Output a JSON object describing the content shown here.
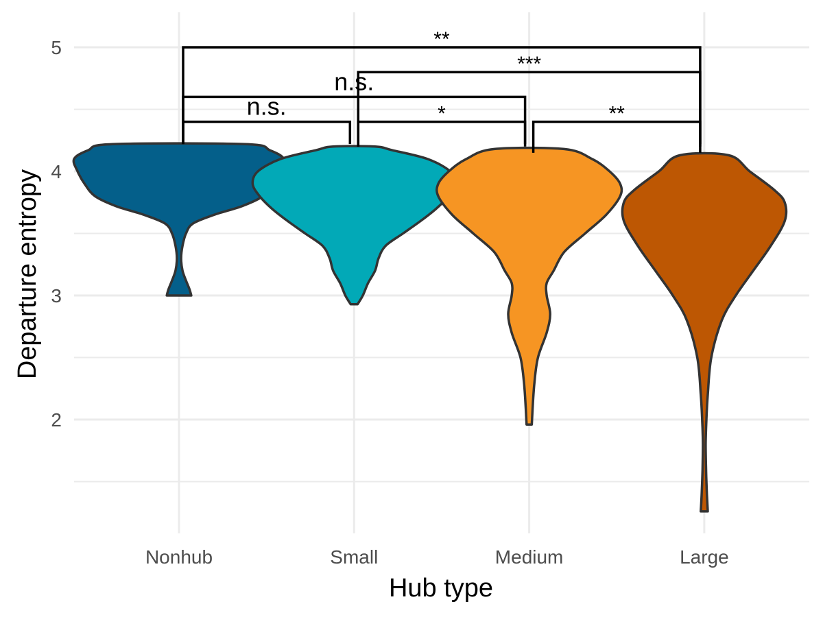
{
  "chart_data": {
    "type": "violin",
    "xlabel": "Hub type",
    "ylabel": "Departure entropy",
    "categories": [
      "Nonhub",
      "Small",
      "Medium",
      "Large"
    ],
    "colors": [
      "#045f8a",
      "#02a9b7",
      "#f69523",
      "#bd5703"
    ],
    "ylim": [
      1.1,
      5.3
    ],
    "yticks": [
      2,
      3,
      4,
      5
    ],
    "grid": true,
    "legend": "none",
    "violins": [
      {
        "category": "Nonhub",
        "min": 3.0,
        "max": 4.22,
        "profile": [
          {
            "y": 3.0,
            "w": 0.07
          },
          {
            "y": 3.05,
            "w": 0.06
          },
          {
            "y": 3.12,
            "w": 0.04
          },
          {
            "y": 3.2,
            "w": 0.02
          },
          {
            "y": 3.3,
            "w": 0.012
          },
          {
            "y": 3.4,
            "w": 0.02
          },
          {
            "y": 3.5,
            "w": 0.04
          },
          {
            "y": 3.58,
            "w": 0.08
          },
          {
            "y": 3.65,
            "w": 0.2
          },
          {
            "y": 3.72,
            "w": 0.36
          },
          {
            "y": 3.8,
            "w": 0.48
          },
          {
            "y": 3.9,
            "w": 0.54
          },
          {
            "y": 4.0,
            "w": 0.58
          },
          {
            "y": 4.1,
            "w": 0.6
          },
          {
            "y": 4.17,
            "w": 0.52
          },
          {
            "y": 4.22,
            "w": 0.38
          }
        ]
      },
      {
        "category": "Small",
        "min": 2.93,
        "max": 4.2,
        "profile": [
          {
            "y": 2.93,
            "w": 0.02
          },
          {
            "y": 3.0,
            "w": 0.05
          },
          {
            "y": 3.1,
            "w": 0.08
          },
          {
            "y": 3.2,
            "w": 0.12
          },
          {
            "y": 3.3,
            "w": 0.14
          },
          {
            "y": 3.4,
            "w": 0.18
          },
          {
            "y": 3.5,
            "w": 0.28
          },
          {
            "y": 3.6,
            "w": 0.38
          },
          {
            "y": 3.7,
            "w": 0.47
          },
          {
            "y": 3.8,
            "w": 0.54
          },
          {
            "y": 3.9,
            "w": 0.58
          },
          {
            "y": 4.0,
            "w": 0.55
          },
          {
            "y": 4.1,
            "w": 0.42
          },
          {
            "y": 4.17,
            "w": 0.22
          },
          {
            "y": 4.2,
            "w": 0.12
          }
        ]
      },
      {
        "category": "Medium",
        "min": 1.96,
        "max": 4.18,
        "profile": [
          {
            "y": 1.96,
            "w": 0.015
          },
          {
            "y": 2.1,
            "w": 0.02
          },
          {
            "y": 2.3,
            "w": 0.03
          },
          {
            "y": 2.5,
            "w": 0.05
          },
          {
            "y": 2.7,
            "w": 0.1
          },
          {
            "y": 2.85,
            "w": 0.12
          },
          {
            "y": 3.0,
            "w": 0.1
          },
          {
            "y": 3.1,
            "w": 0.1
          },
          {
            "y": 3.2,
            "w": 0.14
          },
          {
            "y": 3.35,
            "w": 0.2
          },
          {
            "y": 3.5,
            "w": 0.32
          },
          {
            "y": 3.65,
            "w": 0.44
          },
          {
            "y": 3.8,
            "w": 0.52
          },
          {
            "y": 3.9,
            "w": 0.52
          },
          {
            "y": 4.0,
            "w": 0.46
          },
          {
            "y": 4.1,
            "w": 0.36
          },
          {
            "y": 4.18,
            "w": 0.2
          }
        ]
      },
      {
        "category": "Large",
        "min": 1.26,
        "max": 4.13,
        "profile": [
          {
            "y": 1.26,
            "w": 0.02
          },
          {
            "y": 1.4,
            "w": 0.015
          },
          {
            "y": 1.6,
            "w": 0.01
          },
          {
            "y": 1.8,
            "w": 0.008
          },
          {
            "y": 2.0,
            "w": 0.012
          },
          {
            "y": 2.2,
            "w": 0.02
          },
          {
            "y": 2.5,
            "w": 0.04
          },
          {
            "y": 2.8,
            "w": 0.1
          },
          {
            "y": 3.0,
            "w": 0.18
          },
          {
            "y": 3.2,
            "w": 0.28
          },
          {
            "y": 3.4,
            "w": 0.38
          },
          {
            "y": 3.6,
            "w": 0.46
          },
          {
            "y": 3.75,
            "w": 0.46
          },
          {
            "y": 3.85,
            "w": 0.4
          },
          {
            "y": 4.0,
            "w": 0.26
          },
          {
            "y": 4.13,
            "w": 0.14
          }
        ]
      }
    ],
    "comparisons": [
      {
        "from": "Nonhub",
        "to": "Small",
        "label": "n.s.",
        "y": 4.4,
        "tip": 4.22
      },
      {
        "from": "Small",
        "to": "Medium",
        "label": "*",
        "y": 4.4,
        "tip": 4.2
      },
      {
        "from": "Medium",
        "to": "Large",
        "label": "**",
        "y": 4.4,
        "tip": 4.15
      },
      {
        "from": "Nonhub",
        "to": "Medium",
        "label": "n.s.",
        "y": 4.6,
        "tip": 4.22
      },
      {
        "from": "Small",
        "to": "Large",
        "label": "***",
        "y": 4.8,
        "tip": 4.2
      },
      {
        "from": "Nonhub",
        "to": "Large",
        "label": "**",
        "y": 5.0,
        "tip": 4.22
      }
    ]
  }
}
